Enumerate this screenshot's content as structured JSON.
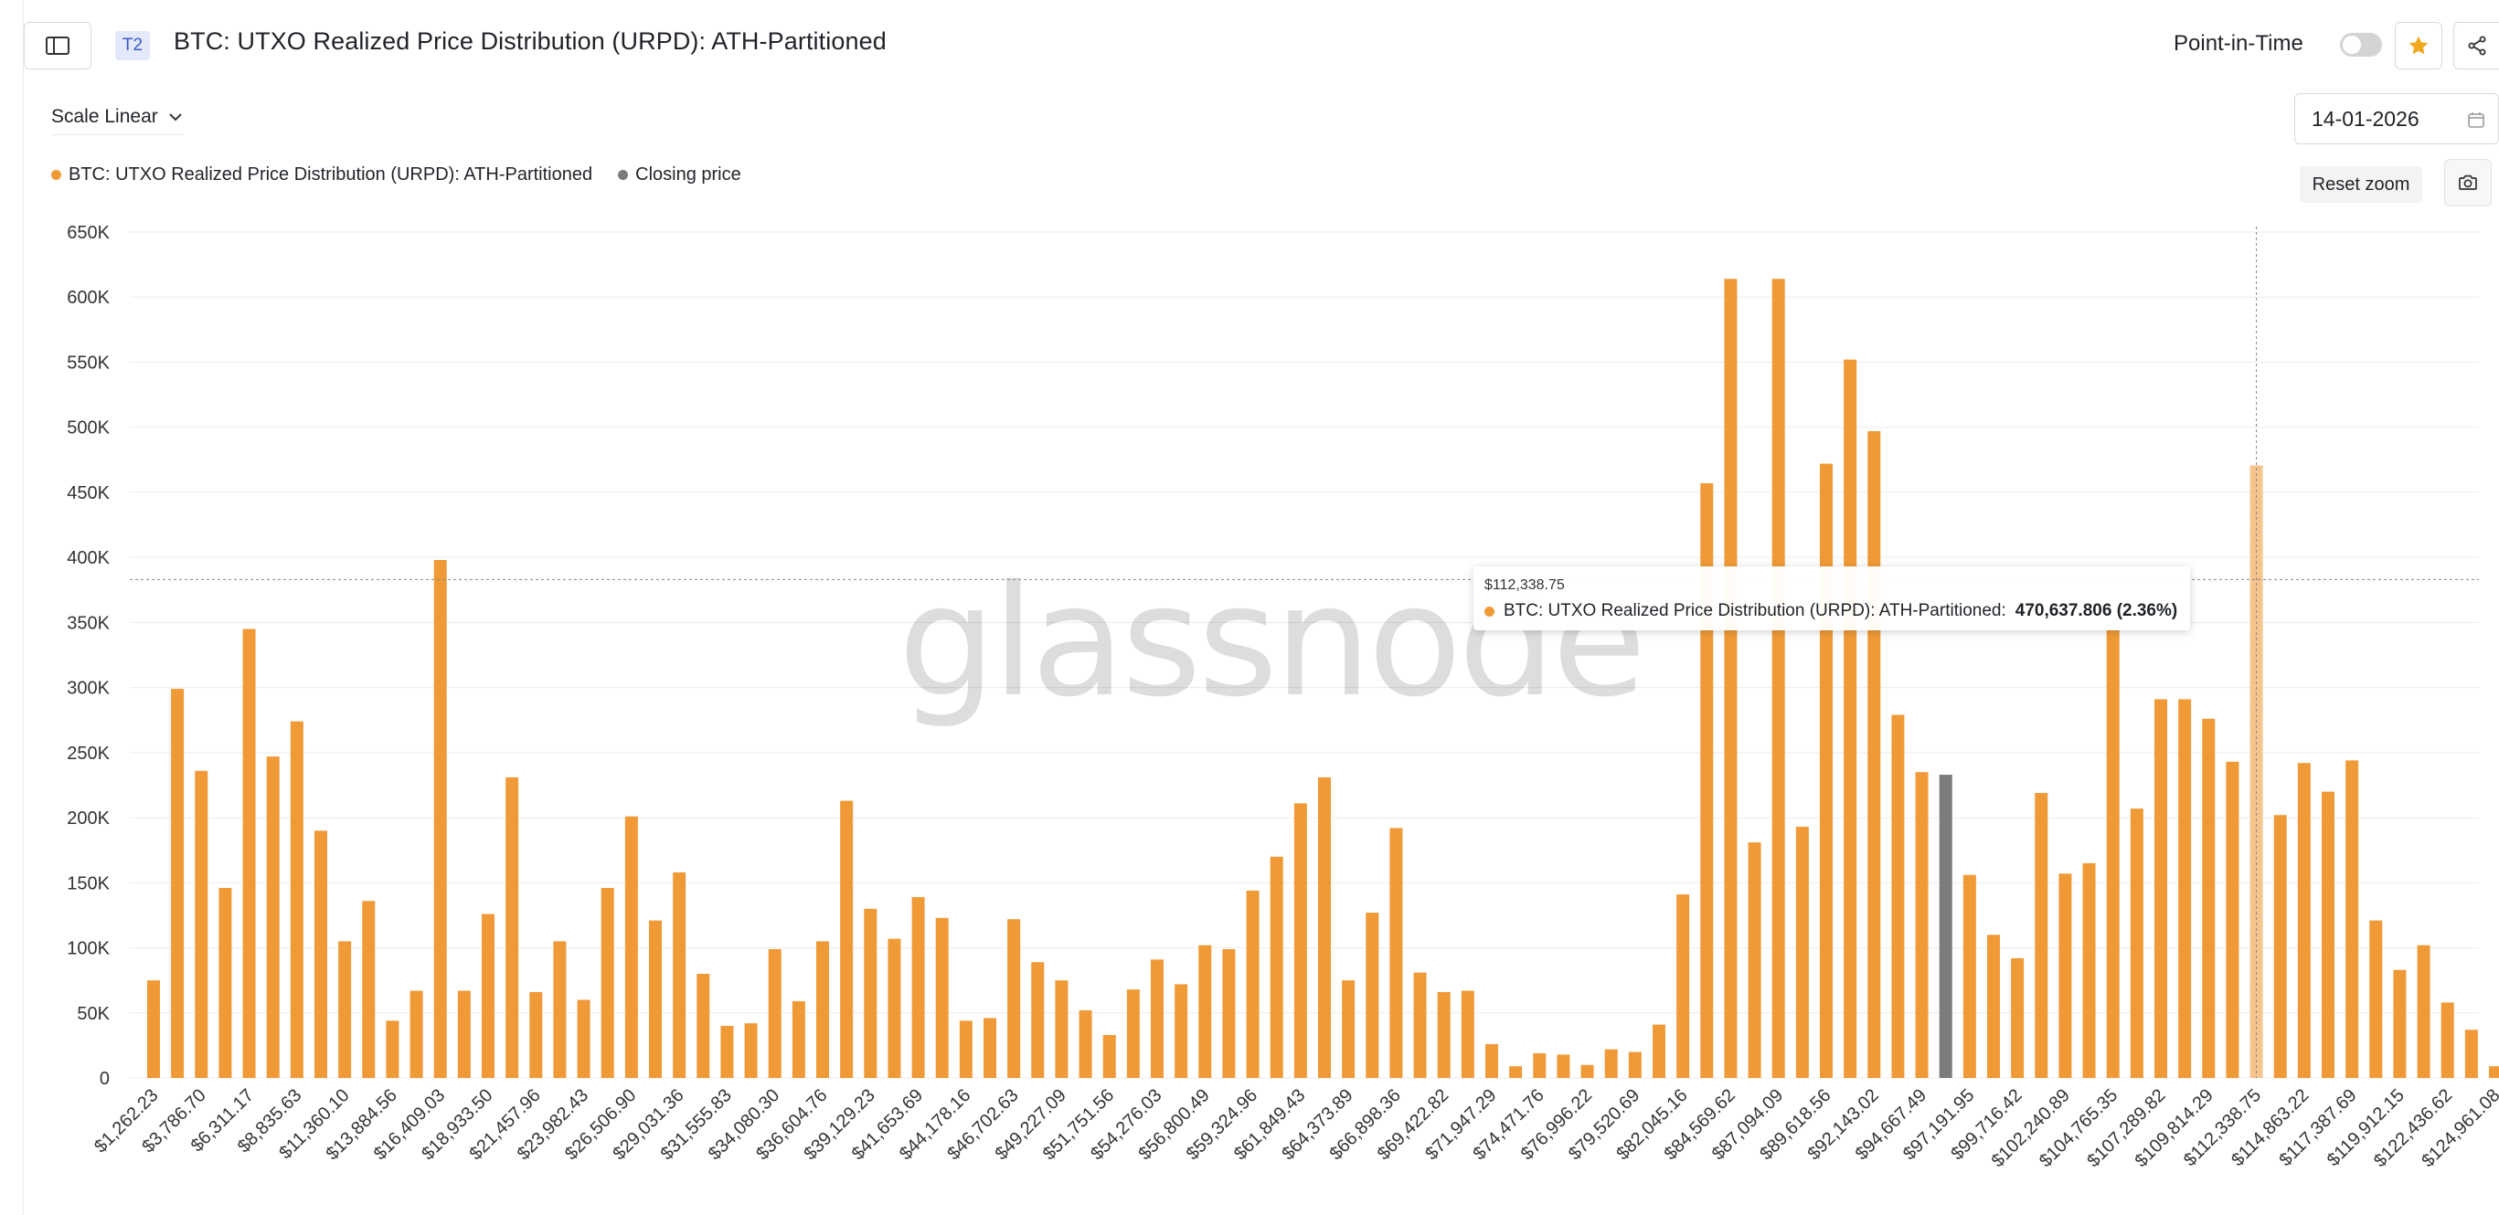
{
  "header": {
    "tier_badge": "T2",
    "title": "BTC: UTXO Realized Price Distribution (URPD): ATH-Partitioned",
    "point_in_time_label": "Point-in-Time",
    "point_in_time_on": false,
    "sidebar_icon": "sidebar-panel-icon",
    "favorite_icon": "star-icon",
    "share_icon": "share-icon"
  },
  "controls": {
    "scale_label": "Scale Linear",
    "date_value": "14-01-2026",
    "date_icon": "calendar-icon",
    "reset_zoom_label": "Reset zoom",
    "screenshot_icon": "camera-icon"
  },
  "legend": {
    "items": [
      {
        "label": "BTC: UTXO Realized Price Distribution (URPD): ATH-Partitioned",
        "color": "#f09a37"
      },
      {
        "label": "Closing price",
        "color": "#7b7b7b"
      }
    ]
  },
  "colors": {
    "bar": "#f09a37",
    "bar_highlight": "#f6c48c",
    "closing_price": "#7b7b7b",
    "grid": "#ececec"
  },
  "watermark": "glassnode",
  "tooltip": {
    "title": "$112,338.75",
    "series": "BTC: UTXO Realized Price Distribution (URPD): ATH-Partitioned:",
    "value": "470,637.806 (2.36%)"
  },
  "chart_data": {
    "type": "bar",
    "title": "",
    "xlabel": "",
    "ylabel": "",
    "ylim": [
      0,
      650000
    ],
    "y_ticks": [
      0,
      50000,
      100000,
      150000,
      200000,
      250000,
      300000,
      350000,
      400000,
      450000,
      500000,
      550000,
      600000,
      650000
    ],
    "y_tick_labels": [
      "0",
      "50K",
      "100K",
      "150K",
      "200K",
      "250K",
      "300K",
      "350K",
      "400K",
      "450K",
      "500K",
      "550K",
      "600K",
      "650K"
    ],
    "grid": true,
    "legend_position": "top-left",
    "x_tick_labels": [
      "$1,262.23",
      "$3,786.70",
      "$6,311.17",
      "$8,835.63",
      "$11,360.10",
      "$13,884.56",
      "$16,409.03",
      "$18,933.50",
      "$21,457.96",
      "$23,982.43",
      "$26,506.90",
      "$29,031.36",
      "$31,555.83",
      "$34,080.30",
      "$36,604.76",
      "$39,129.23",
      "$41,653.69",
      "$44,178.16",
      "$46,702.63",
      "$49,227.09",
      "$51,751.56",
      "$54,276.03",
      "$56,800.49",
      "$59,324.96",
      "$61,849.43",
      "$64,373.89",
      "$66,898.36",
      "$69,422.82",
      "$71,947.29",
      "$74,471.76",
      "$76,996.22",
      "$79,520.69",
      "$82,045.16",
      "$84,569.62",
      "$87,094.09",
      "$89,618.56",
      "$92,143.02",
      "$94,667.49",
      "$97,191.95",
      "$99,716.42",
      "$102,240.89",
      "$104,765.35",
      "$107,289.82",
      "$109,814.29",
      "$112,338.75",
      "$114,863.22",
      "$117,387.69",
      "$119,912.15",
      "$122,436.62",
      "$124,961.08"
    ],
    "bin_start": 1262.23,
    "bin_width": 1262.23,
    "values": [
      75000,
      299000,
      236000,
      146000,
      345000,
      247000,
      274000,
      190000,
      105000,
      136000,
      44000,
      67000,
      398000,
      67000,
      126000,
      231000,
      66000,
      105000,
      60000,
      146000,
      201000,
      121000,
      158000,
      80000,
      40000,
      42000,
      99000,
      59000,
      105000,
      213000,
      130000,
      107000,
      139000,
      123000,
      44000,
      46000,
      122000,
      89000,
      75000,
      52000,
      33000,
      68000,
      91000,
      72000,
      102000,
      99000,
      144000,
      170000,
      211000,
      231000,
      75000,
      127000,
      192000,
      81000,
      66000,
      67000,
      26000,
      9000,
      19000,
      18000,
      10000,
      22000,
      20000,
      41000,
      141000,
      457000,
      614000,
      181000,
      614000,
      193000,
      472000,
      552000,
      497000,
      279000,
      235000,
      233000,
      156000,
      110000,
      92000,
      219000,
      157000,
      165000,
      345000,
      207000,
      291000,
      291000,
      276000,
      243000,
      470638,
      202000,
      242000,
      220000,
      244000,
      121000,
      83000,
      102000,
      58000,
      37000,
      9000
    ],
    "closing_price_index": 75,
    "highlight_index": 88,
    "closing_price_line_value": 383000
  }
}
